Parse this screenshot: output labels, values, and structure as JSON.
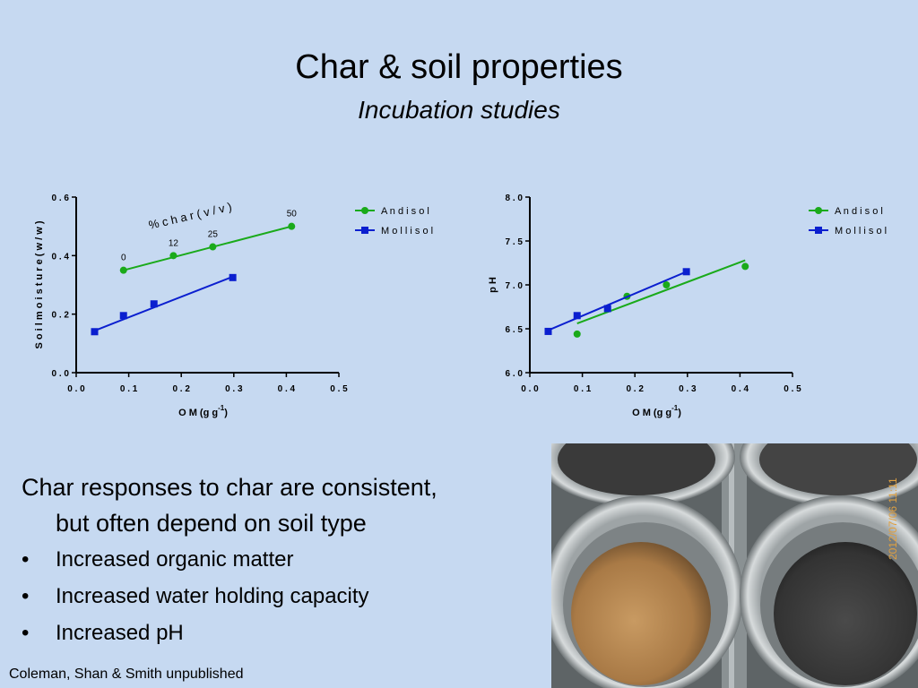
{
  "slide": {
    "title": "Char & soil properties",
    "subtitle": "Incubation studies",
    "body_lead_line1": "Char responses to char are consistent,",
    "body_lead_line2": "but often depend on soil type",
    "bullets": [
      "Increased organic matter",
      "Increased water holding capacity",
      "Increased pH"
    ],
    "bullet_symbol": "•",
    "credit": "Coleman, Shan & Smith unpublished",
    "photo_date_stamp": "2012/07/06 11:11",
    "background_color": "#c6d9f1"
  },
  "chart_data": [
    {
      "type": "scatter",
      "x_axis_label": "O M  (g  g",
      "x_axis_label_sup": "-1",
      "x_axis_label_close": ")",
      "ylabel": "S o i l  m o i s t u r e  ( w / w )",
      "xlim": [
        0.0,
        0.5
      ],
      "ylim": [
        0.0,
        0.6
      ],
      "xticks": [
        "0 . 0",
        "0 . 1",
        "0 . 2",
        "0 . 3",
        "0 . 4",
        "0 . 5"
      ],
      "yticks": [
        "0 . 0",
        "0 . 2",
        "0 . 4",
        "0 . 6"
      ],
      "xtick_values": [
        0.0,
        0.1,
        0.2,
        0.3,
        0.4,
        0.5
      ],
      "ytick_values": [
        0.0,
        0.2,
        0.4,
        0.6
      ],
      "legend_position": "top-right",
      "annotation": "%  c h a r  ( v / v )",
      "series": [
        {
          "name": "A n d i s o l",
          "color": "#1aaa1a",
          "marker": "circle",
          "x": [
            0.09,
            0.185,
            0.26,
            0.41
          ],
          "y": [
            0.35,
            0.4,
            0.43,
            0.5
          ],
          "point_labels": [
            "0",
            "12",
            "25",
            "50"
          ],
          "fit": [
            [
              0.09,
              0.35
            ],
            [
              0.41,
              0.5
            ]
          ]
        },
        {
          "name": "M o l l i s o l",
          "color": "#0b1fcf",
          "marker": "square",
          "x": [
            0.035,
            0.09,
            0.148,
            0.298
          ],
          "y": [
            0.14,
            0.195,
            0.235,
            0.325
          ],
          "fit": [
            [
              0.03,
              0.14
            ],
            [
              0.298,
              0.328
            ]
          ]
        }
      ]
    },
    {
      "type": "scatter",
      "x_axis_label": "O M  (g  g",
      "x_axis_label_sup": "-1",
      "x_axis_label_close": ")",
      "ylabel": "p H",
      "xlim": [
        0.0,
        0.5
      ],
      "ylim": [
        6.0,
        8.0
      ],
      "xticks": [
        "0 . 0",
        "0 . 1",
        "0 . 2",
        "0 . 3",
        "0 . 4",
        "0 . 5"
      ],
      "yticks": [
        "6 . 0",
        "6 . 5",
        "7 . 0",
        "7 . 5",
        "8 . 0"
      ],
      "xtick_values": [
        0.0,
        0.1,
        0.2,
        0.3,
        0.4,
        0.5
      ],
      "ytick_values": [
        6.0,
        6.5,
        7.0,
        7.5,
        8.0
      ],
      "legend_position": "top-right",
      "series": [
        {
          "name": "A n d i s o l",
          "color": "#1aaa1a",
          "marker": "circle",
          "x": [
            0.09,
            0.185,
            0.26,
            0.41
          ],
          "y": [
            6.44,
            6.87,
            7.0,
            7.21
          ],
          "fit": [
            [
              0.09,
              6.56
            ],
            [
              0.41,
              7.28
            ]
          ]
        },
        {
          "name": "M o l l i s o l",
          "color": "#0b1fcf",
          "marker": "square",
          "x": [
            0.035,
            0.09,
            0.148,
            0.298
          ],
          "y": [
            6.47,
            6.65,
            6.73,
            7.15
          ],
          "fit": [
            [
              0.03,
              6.47
            ],
            [
              0.298,
              7.15
            ]
          ]
        }
      ]
    }
  ]
}
